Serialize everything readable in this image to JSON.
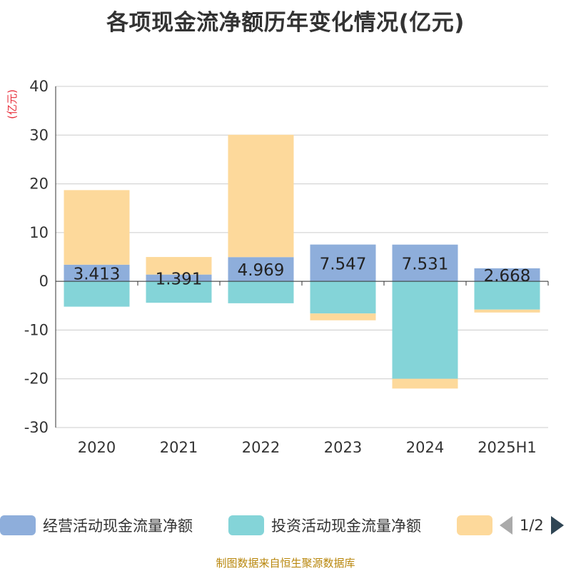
{
  "title": "各项现金流净额历年变化情况(亿元)",
  "source": "制图数据来自恒生聚源数据库",
  "legend": {
    "items": [
      {
        "label": "经营活动现金流量净额",
        "color": "#8eaedb"
      },
      {
        "label": "投资活动现金流量净额",
        "color": "#84d4d8"
      },
      {
        "label": "",
        "color": "#fdd99b"
      }
    ],
    "page": "1/2"
  },
  "chart_data": {
    "type": "bar",
    "stacked": true,
    "title": "各项现金流净额历年变化情况(亿元)",
    "ylabel": "(亿元)",
    "xlabel": "",
    "categories": [
      "2020",
      "2021",
      "2022",
      "2023",
      "2024",
      "2025H1"
    ],
    "ylim": [
      -30,
      40
    ],
    "yticks": [
      -30,
      -20,
      -10,
      0,
      10,
      20,
      30,
      40
    ],
    "grid": true,
    "legend_position": "bottom",
    "series": [
      {
        "name": "经营活动现金流量净额",
        "color": "#8eaedb",
        "values": [
          3.413,
          1.391,
          4.969,
          7.547,
          7.531,
          2.668
        ],
        "labels": [
          "3.413",
          "1.391",
          "4.969",
          "7.547",
          "7.531",
          "2.668"
        ]
      },
      {
        "name": "投资活动现金流量净额",
        "color": "#84d4d8",
        "values": [
          -5.2,
          -4.4,
          -4.5,
          -6.6,
          -20.0,
          -5.8
        ]
      },
      {
        "color": "#fdd99b",
        "values": [
          15.3,
          3.6,
          25.1,
          -1.4,
          -2.0,
          -0.6
        ]
      }
    ]
  }
}
